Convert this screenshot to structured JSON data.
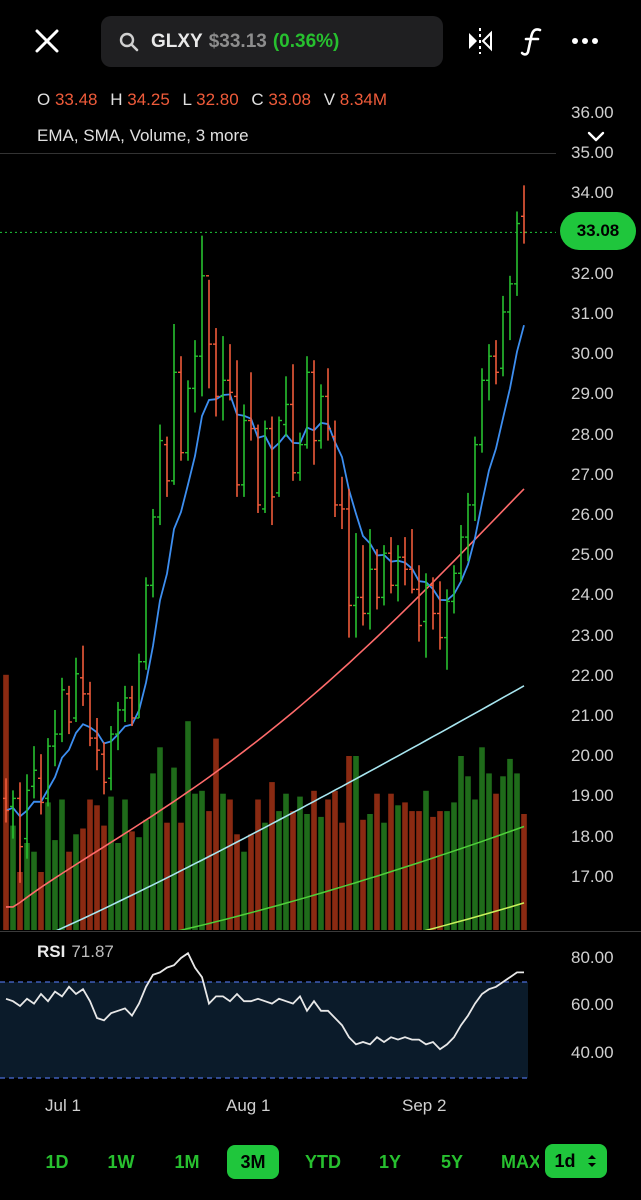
{
  "header": {
    "close_icon": "close-icon",
    "search_icon": "search-icon",
    "symbol": "GLXY",
    "price": "$33.13",
    "change": "(0.36%)",
    "compare_icon": "compare-icon",
    "function_icon": "function-icon",
    "more_icon": "more-icon"
  },
  "ohlc": {
    "o_label": "O",
    "o_value": "33.48",
    "h_label": "H",
    "h_value": "34.25",
    "l_label": "L",
    "l_value": "32.80",
    "c_label": "C",
    "c_value": "33.08",
    "v_label": "V",
    "v_value": "8.34M"
  },
  "indicators_text": "EMA, SMA, Volume, 3 more",
  "price_axis": [
    "36.00",
    "35.00",
    "34.00",
    "33.00",
    "32.00",
    "31.00",
    "30.00",
    "29.00",
    "28.00",
    "27.00",
    "26.00",
    "25.00",
    "24.00",
    "23.00",
    "22.00",
    "21.00",
    "20.00",
    "19.00",
    "18.00",
    "17.00"
  ],
  "last_price_label": "33.08",
  "rsi": {
    "label": "RSI",
    "value": "71.87",
    "axis": [
      "80.00",
      "60.00",
      "40.00"
    ]
  },
  "date_axis": [
    "Jul 1",
    "Aug 1",
    "Sep 2"
  ],
  "ranges": [
    "1D",
    "1W",
    "1M",
    "3M",
    "YTD",
    "1Y",
    "5Y",
    "MAX"
  ],
  "active_range": "3M",
  "interval": "1d",
  "colors": {
    "up": "#27c02f",
    "down": "#ef5b3a",
    "ema": "#3d8ef0",
    "sma_red": "#ff6b6b",
    "sma_cyan": "#a8e6f0"
  },
  "chart_data": {
    "type": "line",
    "ylim": [
      16.3,
      36.5
    ],
    "ohlc_bars": [
      {
        "o": 19.0,
        "h": 19.5,
        "l": 18.4,
        "c": 18.7
      },
      {
        "o": 18.8,
        "h": 19.2,
        "l": 18.0,
        "c": 19.0
      },
      {
        "o": 19.0,
        "h": 19.4,
        "l": 16.9,
        "c": 17.8
      },
      {
        "o": 18.0,
        "h": 19.6,
        "l": 17.5,
        "c": 19.2
      },
      {
        "o": 19.3,
        "h": 20.3,
        "l": 19.0,
        "c": 19.7
      },
      {
        "o": 19.5,
        "h": 20.1,
        "l": 18.6,
        "c": 18.9
      },
      {
        "o": 19.0,
        "h": 20.5,
        "l": 18.8,
        "c": 20.3
      },
      {
        "o": 20.3,
        "h": 21.2,
        "l": 19.8,
        "c": 20.6
      },
      {
        "o": 20.6,
        "h": 22.0,
        "l": 20.4,
        "c": 21.7
      },
      {
        "o": 21.6,
        "h": 21.8,
        "l": 20.6,
        "c": 20.9
      },
      {
        "o": 21.0,
        "h": 22.5,
        "l": 20.9,
        "c": 22.1
      },
      {
        "o": 22.0,
        "h": 22.8,
        "l": 21.3,
        "c": 21.6
      },
      {
        "o": 21.6,
        "h": 21.9,
        "l": 20.3,
        "c": 20.5
      },
      {
        "o": 20.5,
        "h": 21.0,
        "l": 19.7,
        "c": 20.2
      },
      {
        "o": 20.1,
        "h": 20.4,
        "l": 19.1,
        "c": 19.4
      },
      {
        "o": 19.5,
        "h": 20.8,
        "l": 19.2,
        "c": 20.6
      },
      {
        "o": 20.6,
        "h": 21.4,
        "l": 20.2,
        "c": 21.2
      },
      {
        "o": 21.2,
        "h": 21.8,
        "l": 20.9,
        "c": 21.5
      },
      {
        "o": 21.5,
        "h": 21.8,
        "l": 20.8,
        "c": 21.0
      },
      {
        "o": 21.0,
        "h": 22.6,
        "l": 21.0,
        "c": 22.4
      },
      {
        "o": 22.4,
        "h": 24.5,
        "l": 22.2,
        "c": 24.3
      },
      {
        "o": 24.3,
        "h": 26.2,
        "l": 24.0,
        "c": 26.0
      },
      {
        "o": 26.0,
        "h": 28.3,
        "l": 25.8,
        "c": 27.9
      },
      {
        "o": 27.8,
        "h": 28.0,
        "l": 26.5,
        "c": 26.9
      },
      {
        "o": 26.9,
        "h": 30.8,
        "l": 26.8,
        "c": 29.6
      },
      {
        "o": 29.6,
        "h": 30.0,
        "l": 27.4,
        "c": 27.6
      },
      {
        "o": 27.6,
        "h": 29.4,
        "l": 27.4,
        "c": 29.2
      },
      {
        "o": 29.2,
        "h": 30.4,
        "l": 28.6,
        "c": 30.0
      },
      {
        "o": 30.0,
        "h": 33.0,
        "l": 29.0,
        "c": 32.0
      },
      {
        "o": 32.0,
        "h": 31.9,
        "l": 29.2,
        "c": 30.3
      },
      {
        "o": 30.3,
        "h": 30.7,
        "l": 28.5,
        "c": 29.0
      },
      {
        "o": 29.0,
        "h": 30.5,
        "l": 28.4,
        "c": 29.4
      },
      {
        "o": 29.4,
        "h": 30.3,
        "l": 28.9,
        "c": 29.1
      },
      {
        "o": 29.0,
        "h": 29.9,
        "l": 26.5,
        "c": 26.8
      },
      {
        "o": 26.8,
        "h": 28.8,
        "l": 26.5,
        "c": 28.4
      },
      {
        "o": 28.4,
        "h": 29.6,
        "l": 27.9,
        "c": 28.2
      },
      {
        "o": 28.2,
        "h": 28.3,
        "l": 26.1,
        "c": 26.3
      },
      {
        "o": 26.2,
        "h": 28.4,
        "l": 26.1,
        "c": 28.2
      },
      {
        "o": 28.2,
        "h": 28.5,
        "l": 25.8,
        "c": 26.5
      },
      {
        "o": 26.6,
        "h": 28.5,
        "l": 26.5,
        "c": 28.4
      },
      {
        "o": 28.3,
        "h": 29.5,
        "l": 28.0,
        "c": 28.8
      },
      {
        "o": 28.8,
        "h": 29.8,
        "l": 26.9,
        "c": 27.1
      },
      {
        "o": 27.1,
        "h": 28.1,
        "l": 26.9,
        "c": 27.8
      },
      {
        "o": 27.8,
        "h": 30.0,
        "l": 27.7,
        "c": 29.6
      },
      {
        "o": 29.6,
        "h": 29.9,
        "l": 27.3,
        "c": 27.9
      },
      {
        "o": 27.9,
        "h": 29.3,
        "l": 27.7,
        "c": 29.0
      },
      {
        "o": 29.0,
        "h": 29.7,
        "l": 27.9,
        "c": 28.2
      },
      {
        "o": 28.0,
        "h": 28.4,
        "l": 26.0,
        "c": 26.3
      },
      {
        "o": 26.3,
        "h": 27.0,
        "l": 25.7,
        "c": 26.2
      },
      {
        "o": 26.2,
        "h": 26.7,
        "l": 23.0,
        "c": 23.8
      },
      {
        "o": 23.8,
        "h": 25.6,
        "l": 23.0,
        "c": 24.0
      },
      {
        "o": 24.0,
        "h": 25.3,
        "l": 23.3,
        "c": 23.6
      },
      {
        "o": 23.6,
        "h": 25.7,
        "l": 23.2,
        "c": 24.7
      },
      {
        "o": 24.7,
        "h": 25.2,
        "l": 23.7,
        "c": 24.0
      },
      {
        "o": 24.0,
        "h": 25.3,
        "l": 23.8,
        "c": 25.1
      },
      {
        "o": 25.1,
        "h": 25.5,
        "l": 24.1,
        "c": 24.3
      },
      {
        "o": 24.3,
        "h": 25.3,
        "l": 23.9,
        "c": 25.0
      },
      {
        "o": 25.0,
        "h": 25.5,
        "l": 24.3,
        "c": 24.7
      },
      {
        "o": 24.7,
        "h": 25.7,
        "l": 24.1,
        "c": 24.2
      },
      {
        "o": 24.2,
        "h": 24.8,
        "l": 22.9,
        "c": 23.3
      },
      {
        "o": 23.4,
        "h": 24.6,
        "l": 22.5,
        "c": 24.3
      },
      {
        "o": 24.3,
        "h": 24.5,
        "l": 23.2,
        "c": 23.6
      },
      {
        "o": 23.6,
        "h": 24.4,
        "l": 22.7,
        "c": 23.0
      },
      {
        "o": 23.0,
        "h": 24.2,
        "l": 22.2,
        "c": 23.9
      },
      {
        "o": 23.9,
        "h": 24.8,
        "l": 23.6,
        "c": 24.6
      },
      {
        "o": 24.6,
        "h": 25.8,
        "l": 24.4,
        "c": 25.5
      },
      {
        "o": 25.5,
        "h": 26.6,
        "l": 24.9,
        "c": 26.3
      },
      {
        "o": 26.3,
        "h": 28.0,
        "l": 25.9,
        "c": 27.8
      },
      {
        "o": 27.8,
        "h": 29.7,
        "l": 27.6,
        "c": 29.4
      },
      {
        "o": 29.4,
        "h": 30.3,
        "l": 28.9,
        "c": 30.0
      },
      {
        "o": 30.0,
        "h": 30.4,
        "l": 29.3,
        "c": 29.6
      },
      {
        "o": 29.7,
        "h": 31.5,
        "l": 29.5,
        "c": 31.1
      },
      {
        "o": 31.1,
        "h": 32.0,
        "l": 30.4,
        "c": 31.8
      },
      {
        "o": 31.8,
        "h": 33.6,
        "l": 31.5,
        "c": 33.3
      },
      {
        "o": 33.48,
        "h": 34.25,
        "l": 32.8,
        "c": 33.08
      }
    ],
    "volume_relative": [
      0.88,
      0.36,
      0.2,
      0.3,
      0.27,
      0.2,
      0.44,
      0.31,
      0.45,
      0.27,
      0.33,
      0.35,
      0.45,
      0.43,
      0.36,
      0.46,
      0.3,
      0.45,
      0.34,
      0.32,
      0.38,
      0.54,
      0.63,
      0.37,
      0.56,
      0.37,
      0.72,
      0.47,
      0.48,
      0.41,
      0.66,
      0.47,
      0.45,
      0.33,
      0.27,
      0.33,
      0.45,
      0.37,
      0.51,
      0.41,
      0.47,
      0.41,
      0.46,
      0.4,
      0.48,
      0.39,
      0.45,
      0.48,
      0.37,
      0.6,
      0.6,
      0.38,
      0.4,
      0.47,
      0.37,
      0.47,
      0.43,
      0.44,
      0.41,
      0.41,
      0.48,
      0.39,
      0.41,
      0.41,
      0.44,
      0.6,
      0.53,
      0.45,
      0.63,
      0.54,
      0.47,
      0.53,
      0.59,
      0.54,
      0.4
    ]
  }
}
